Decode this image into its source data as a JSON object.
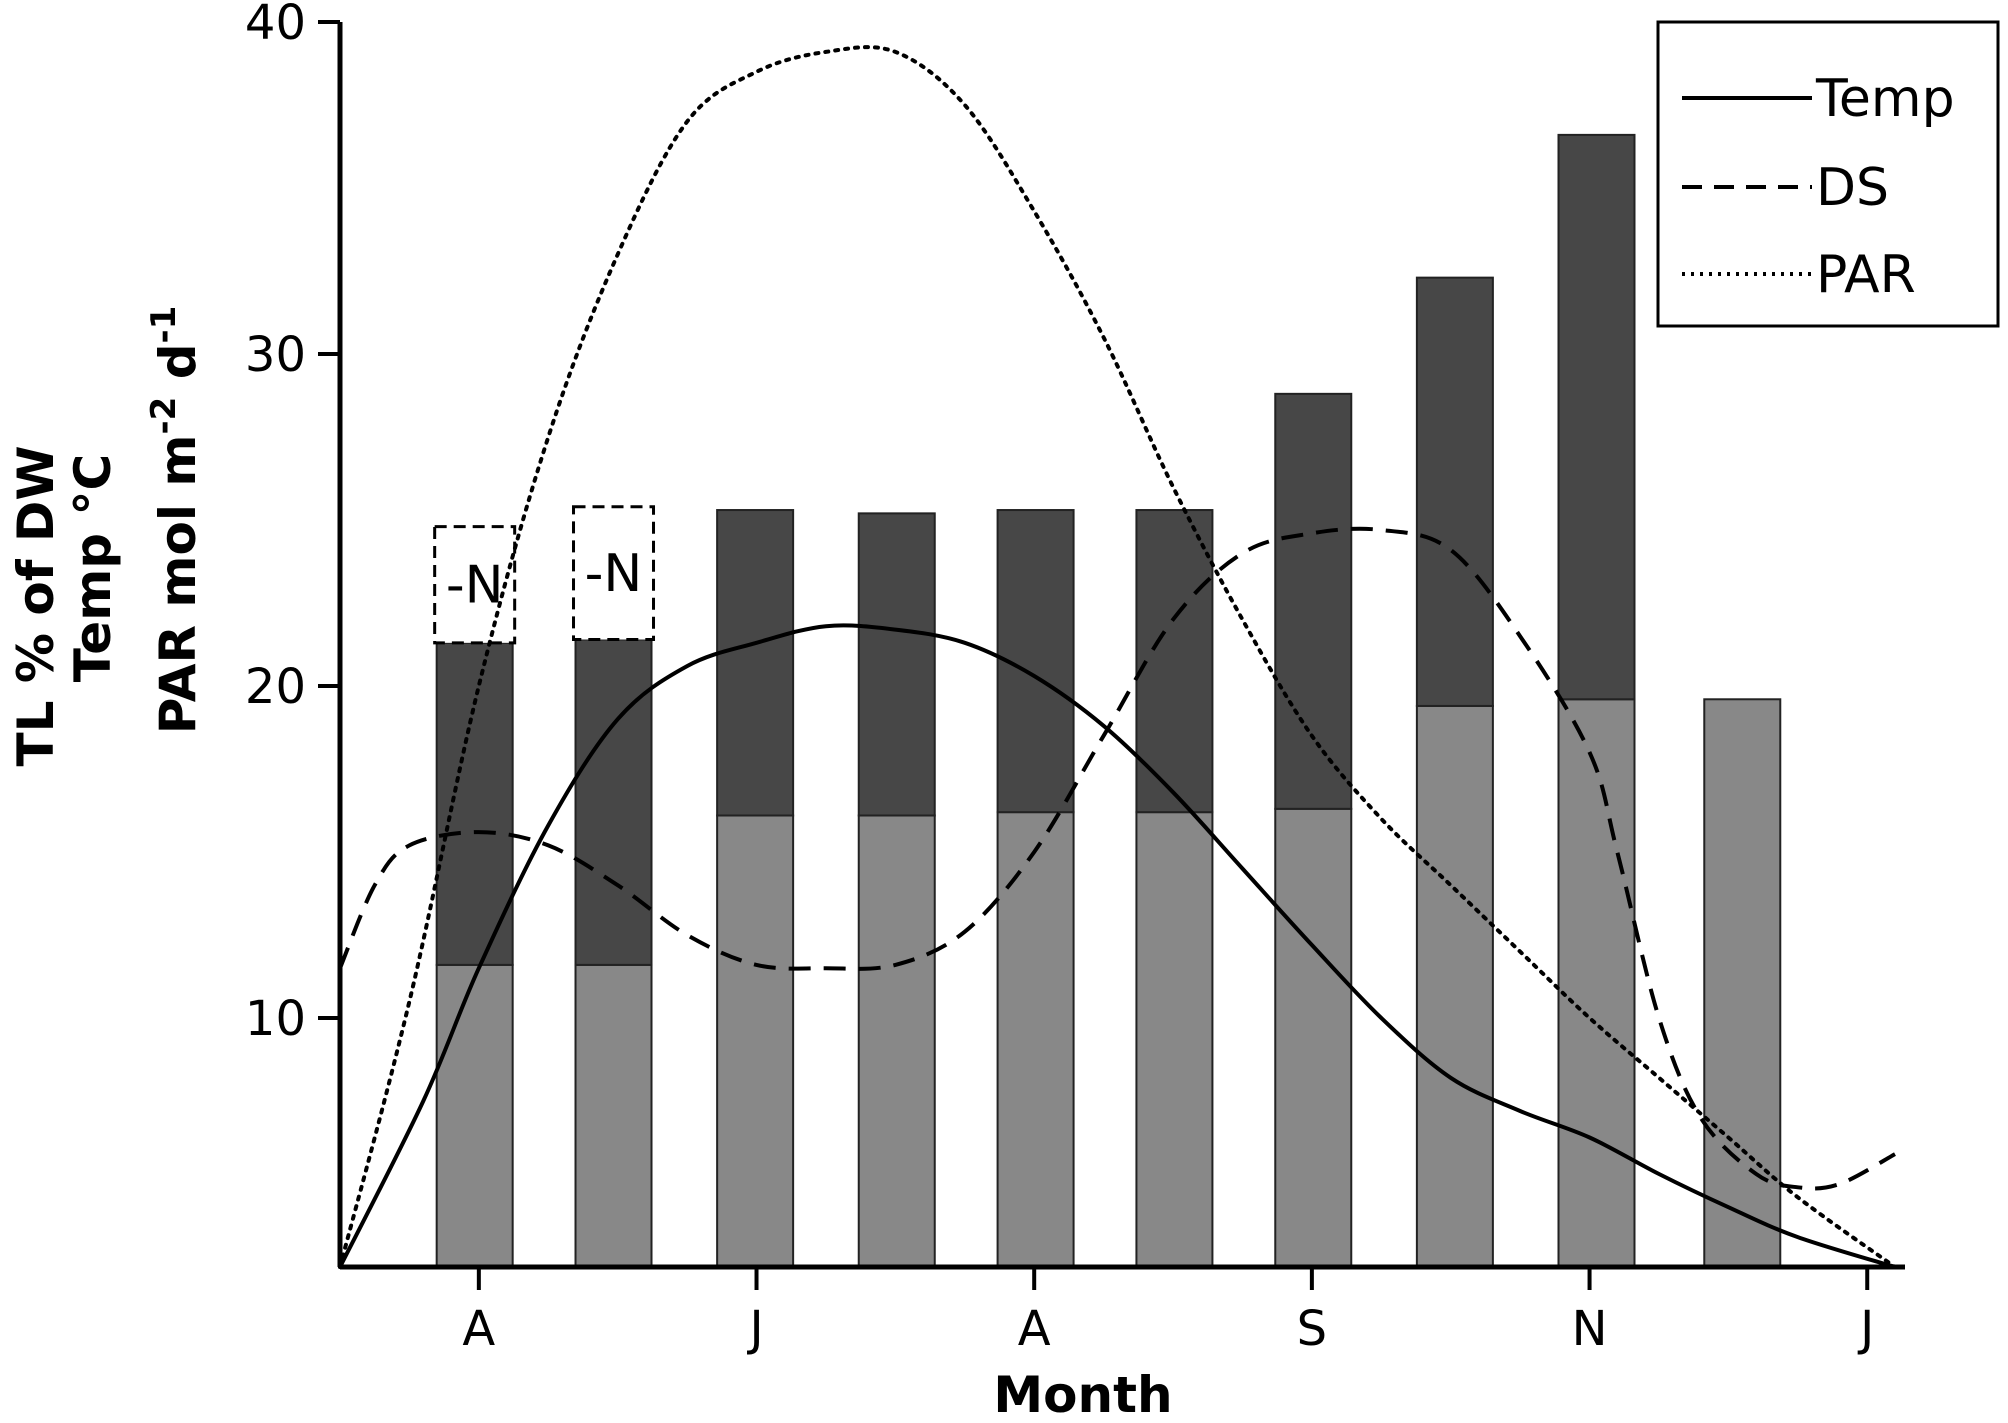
{
  "chart_data": {
    "type": "bar",
    "xlabel": "Month",
    "ylabel_lines": [
      "TL % of DW",
      "Temp °C",
      "PAR mol m",
      "-2",
      " d",
      "-1"
    ],
    "ylim": [
      2.5,
      40
    ],
    "yticks": [
      10,
      20,
      30,
      40
    ],
    "x_range": [
      0,
      11.2
    ],
    "x_ticks": [
      {
        "label": "A",
        "x": 1
      },
      {
        "label": "J",
        "x": 3
      },
      {
        "label": "A",
        "x": 5
      },
      {
        "label": "S",
        "x": 7
      },
      {
        "label": "N",
        "x": 9
      },
      {
        "label": "J",
        "x": 11
      }
    ],
    "colors": {
      "lower": "#888888",
      "upper": "#474747",
      "edge": "#222222"
    },
    "bars": [
      {
        "x": 0.97,
        "lower": 11.6,
        "upper": 21.3,
        "note": "-N",
        "note_top": 24.8
      },
      {
        "x": 1.97,
        "lower": 11.6,
        "upper": 21.4,
        "note": "-N",
        "note_top": 25.4
      },
      {
        "x": 2.99,
        "lower": 16.1,
        "upper": 25.3
      },
      {
        "x": 4.01,
        "lower": 16.1,
        "upper": 25.2
      },
      {
        "x": 5.01,
        "lower": 16.2,
        "upper": 25.3
      },
      {
        "x": 6.01,
        "lower": 16.2,
        "upper": 25.3
      },
      {
        "x": 7.01,
        "lower": 16.3,
        "upper": 28.8
      },
      {
        "x": 8.03,
        "lower": 19.4,
        "upper": 32.3
      },
      {
        "x": 9.05,
        "lower": 19.6,
        "upper": 36.6
      },
      {
        "x": 10.1,
        "lower": 19.6,
        "upper": null
      }
    ],
    "series": [
      {
        "name": "Temp",
        "style": "solid",
        "points": [
          [
            0,
            2.5
          ],
          [
            0.6,
            7.5
          ],
          [
            1.0,
            11.5
          ],
          [
            1.5,
            15.8
          ],
          [
            2.0,
            19.0
          ],
          [
            2.5,
            20.6
          ],
          [
            3.0,
            21.3
          ],
          [
            3.5,
            21.8
          ],
          [
            4.0,
            21.7
          ],
          [
            4.5,
            21.3
          ],
          [
            5.0,
            20.3
          ],
          [
            5.5,
            18.8
          ],
          [
            6.0,
            16.8
          ],
          [
            6.5,
            14.5
          ],
          [
            7.0,
            12.2
          ],
          [
            7.5,
            10.0
          ],
          [
            8.0,
            8.2
          ],
          [
            8.5,
            7.2
          ],
          [
            9.0,
            6.4
          ],
          [
            9.5,
            5.3
          ],
          [
            10.0,
            4.3
          ],
          [
            10.5,
            3.4
          ],
          [
            11.2,
            2.5
          ]
        ]
      },
      {
        "name": "DS",
        "style": "dashed",
        "points": [
          [
            0,
            11.5
          ],
          [
            0.25,
            14.0
          ],
          [
            0.5,
            15.2
          ],
          [
            1.0,
            15.6
          ],
          [
            1.5,
            15.2
          ],
          [
            2.0,
            14.0
          ],
          [
            2.5,
            12.5
          ],
          [
            3.0,
            11.6
          ],
          [
            3.5,
            11.5
          ],
          [
            4.0,
            11.6
          ],
          [
            4.5,
            12.6
          ],
          [
            5.0,
            15.0
          ],
          [
            5.5,
            18.5
          ],
          [
            6.0,
            22.0
          ],
          [
            6.5,
            24.0
          ],
          [
            7.0,
            24.6
          ],
          [
            7.5,
            24.7
          ],
          [
            8.0,
            24.1
          ],
          [
            8.5,
            21.5
          ],
          [
            9.0,
            18.0
          ],
          [
            9.2,
            15.0
          ],
          [
            9.5,
            10.0
          ],
          [
            9.8,
            7.0
          ],
          [
            10.2,
            5.3
          ],
          [
            10.5,
            4.9
          ],
          [
            10.8,
            5.0
          ],
          [
            11.2,
            5.9
          ]
        ]
      },
      {
        "name": "PAR",
        "style": "dotted",
        "points": [
          [
            0,
            2.5
          ],
          [
            0.5,
            10.5
          ],
          [
            1.0,
            20.0
          ],
          [
            1.5,
            27.5
          ],
          [
            2.0,
            33.0
          ],
          [
            2.5,
            37.0
          ],
          [
            3.0,
            38.5
          ],
          [
            3.5,
            39.1
          ],
          [
            4.0,
            39.1
          ],
          [
            4.5,
            37.5
          ],
          [
            5.0,
            34.3
          ],
          [
            5.5,
            30.5
          ],
          [
            6.0,
            26.0
          ],
          [
            6.5,
            22.0
          ],
          [
            7.0,
            18.5
          ],
          [
            7.5,
            16.0
          ],
          [
            8.0,
            14.0
          ],
          [
            8.5,
            12.0
          ],
          [
            9.0,
            10.0
          ],
          [
            9.5,
            8.2
          ],
          [
            10.0,
            6.4
          ],
          [
            10.5,
            4.6
          ],
          [
            11.2,
            2.5
          ]
        ]
      }
    ],
    "legend": {
      "placement": "top-right",
      "entries": [
        "Temp",
        "DS",
        "PAR"
      ]
    }
  }
}
